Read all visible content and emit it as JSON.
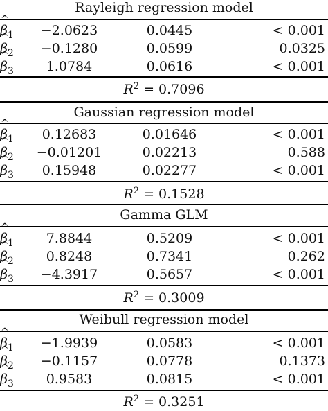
{
  "models": [
    {
      "title": "Rayleigh regression model",
      "rows": [
        {
          "symbol": "β",
          "sub": "1",
          "estimate": "−2.0623",
          "std_error": "0.0445",
          "p_value": "< 0.001"
        },
        {
          "symbol": "β",
          "sub": "2",
          "estimate": "−0.1280",
          "std_error": "0.0599",
          "p_value": "0.0325"
        },
        {
          "symbol": "β",
          "sub": "3",
          "estimate": "1.0784",
          "std_error": "0.0616",
          "p_value": "< 0.001"
        }
      ],
      "r2_label": "R",
      "r2_power": "2",
      "r2_value": " = 0.7096"
    },
    {
      "title": "Gaussian regression model",
      "rows": [
        {
          "symbol": "β",
          "sub": "1",
          "estimate": "0.12683",
          "std_error": "0.01646",
          "p_value": "< 0.001"
        },
        {
          "symbol": "β",
          "sub": "2",
          "estimate": "−0.01201",
          "std_error": "0.02213",
          "p_value": "0.588"
        },
        {
          "symbol": "β",
          "sub": "3",
          "estimate": "0.15948",
          "std_error": "0.02277",
          "p_value": "< 0.001"
        }
      ],
      "r2_label": "R",
      "r2_power": "2",
      "r2_value": " = 0.1528"
    },
    {
      "title": "Gamma GLM",
      "rows": [
        {
          "symbol": "β",
          "sub": "1",
          "estimate": "7.8844",
          "std_error": "0.5209",
          "p_value": "< 0.001"
        },
        {
          "symbol": "β",
          "sub": "2",
          "estimate": "0.8248",
          "std_error": "0.7341",
          "p_value": "0.262"
        },
        {
          "symbol": "β",
          "sub": "3",
          "estimate": "−4.3917",
          "std_error": "0.5657",
          "p_value": "< 0.001"
        }
      ],
      "r2_label": "R",
      "r2_power": "2",
      "r2_value": " = 0.3009"
    },
    {
      "title": "Weibull regression model",
      "rows": [
        {
          "symbol": "β",
          "sub": "1",
          "estimate": "−1.9939",
          "std_error": "0.0583",
          "p_value": "< 0.001"
        },
        {
          "symbol": "β",
          "sub": "2",
          "estimate": "−0.1157",
          "std_error": "0.0778",
          "p_value": "0.1373"
        },
        {
          "symbol": "β",
          "sub": "3",
          "estimate": "0.9583",
          "std_error": "0.0815",
          "p_value": "< 0.001"
        }
      ],
      "r2_label": "R",
      "r2_power": "2",
      "r2_value": " = 0.3251"
    }
  ]
}
